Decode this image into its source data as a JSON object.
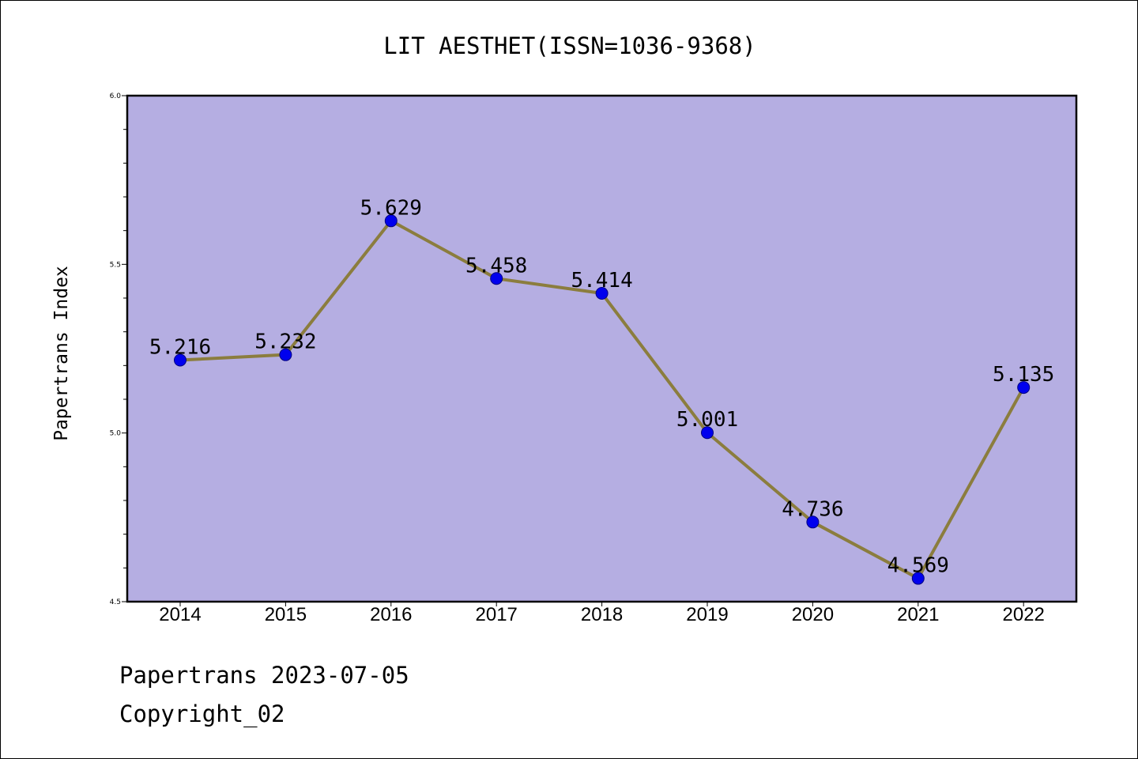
{
  "chart_data": {
    "type": "line",
    "title": "LIT AESTHET(ISSN=1036-9368)",
    "xlabel": "",
    "ylabel": "Papertrans Index",
    "categories": [
      "2014",
      "2015",
      "2016",
      "2017",
      "2018",
      "2019",
      "2020",
      "2021",
      "2022"
    ],
    "series": [
      {
        "values": [
          5.216,
          5.232,
          5.629,
          5.458,
          5.414,
          5.001,
          4.736,
          4.569,
          5.135
        ],
        "data_labels": [
          "5.216",
          "5.232",
          "5.629",
          "5.458",
          "5.414",
          "5.001",
          "4.736",
          "4.569",
          "5.135"
        ]
      }
    ],
    "ylim": [
      4.5,
      6.0
    ],
    "yticks": [
      "4.5",
      "5.0",
      "5.5",
      "6.0"
    ],
    "minor_yticks": [
      4.6,
      4.7,
      4.8,
      4.9,
      5.1,
      5.2,
      5.3,
      5.4,
      5.6,
      5.7,
      5.8,
      5.9
    ],
    "grid": false,
    "legend": "none",
    "colors": {
      "plot_background": "#b5aee2",
      "line": "#8b7d3e",
      "marker": "#0000ee",
      "marker_edge": "#000080"
    }
  },
  "footer": {
    "date_line": "Papertrans 2023-07-05",
    "copyright_line": "Copyright_02"
  }
}
